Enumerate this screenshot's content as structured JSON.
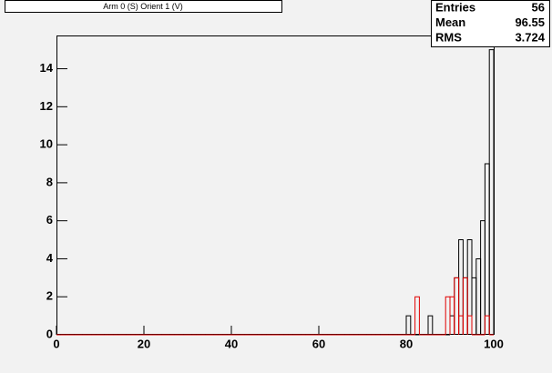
{
  "chart_data": {
    "type": "histogram",
    "title": "Arm 0 (S) Orient 1 (V)",
    "bins": [
      0,
      1,
      2,
      3,
      4,
      5,
      6,
      7,
      8,
      9,
      10,
      11,
      12,
      13,
      14,
      15,
      16,
      17,
      18,
      19,
      20,
      21,
      22,
      23,
      24,
      25,
      26,
      27,
      28,
      29,
      30,
      31,
      32,
      33,
      34,
      35,
      36,
      37,
      38,
      39,
      40,
      41,
      42,
      43,
      44,
      45,
      46,
      47,
      48,
      49,
      50,
      51,
      52,
      53,
      54,
      55,
      56,
      57,
      58,
      59,
      60,
      61,
      62,
      63,
      64,
      65,
      66,
      67,
      68,
      69,
      70,
      71,
      72,
      73,
      74,
      75,
      76,
      77,
      78,
      79,
      80,
      81,
      82,
      83,
      84,
      85,
      86,
      87,
      88,
      89,
      90,
      91,
      92,
      93,
      94,
      95,
      96,
      97,
      98,
      99,
      100
    ],
    "series": [
      {
        "color": "#000000",
        "values": [
          0,
          0,
          0,
          0,
          0,
          0,
          0,
          0,
          0,
          0,
          0,
          0,
          0,
          0,
          0,
          0,
          0,
          0,
          0,
          0,
          0,
          0,
          0,
          0,
          0,
          0,
          0,
          0,
          0,
          0,
          0,
          0,
          0,
          0,
          0,
          0,
          0,
          0,
          0,
          0,
          0,
          0,
          0,
          0,
          0,
          0,
          0,
          0,
          0,
          0,
          0,
          0,
          0,
          0,
          0,
          0,
          0,
          0,
          0,
          0,
          0,
          0,
          0,
          0,
          0,
          0,
          0,
          0,
          0,
          0,
          0,
          0,
          0,
          0,
          0,
          0,
          0,
          0,
          0,
          0,
          1,
          0,
          0,
          0,
          0,
          1,
          0,
          0,
          0,
          0,
          1,
          3,
          5,
          3,
          5,
          3,
          4,
          6,
          9,
          15
        ]
      },
      {
        "color": "#e00000",
        "values": [
          0,
          0,
          0,
          0,
          0,
          0,
          0,
          0,
          0,
          0,
          0,
          0,
          0,
          0,
          0,
          0,
          0,
          0,
          0,
          0,
          0,
          0,
          0,
          0,
          0,
          0,
          0,
          0,
          0,
          0,
          0,
          0,
          0,
          0,
          0,
          0,
          0,
          0,
          0,
          0,
          0,
          0,
          0,
          0,
          0,
          0,
          0,
          0,
          0,
          0,
          0,
          0,
          0,
          0,
          0,
          0,
          0,
          0,
          0,
          0,
          0,
          0,
          0,
          0,
          0,
          0,
          0,
          0,
          0,
          0,
          0,
          0,
          0,
          0,
          0,
          0,
          0,
          0,
          0,
          0,
          0,
          0,
          2,
          0,
          0,
          0,
          0,
          0,
          0,
          2,
          2,
          3,
          1,
          3,
          1,
          0,
          0,
          0,
          1,
          0
        ]
      }
    ],
    "xlim": [
      0,
      100
    ],
    "xticks": [
      0,
      20,
      40,
      60,
      80,
      100
    ],
    "ylim": [
      0,
      15.75
    ],
    "yticks": [
      0,
      2,
      4,
      6,
      8,
      10,
      12,
      14
    ],
    "stats": [
      {
        "label": "Entries",
        "value": 56
      },
      {
        "label": "Mean",
        "value": 96.55
      },
      {
        "label": "RMS",
        "value": 3.724
      }
    ]
  }
}
